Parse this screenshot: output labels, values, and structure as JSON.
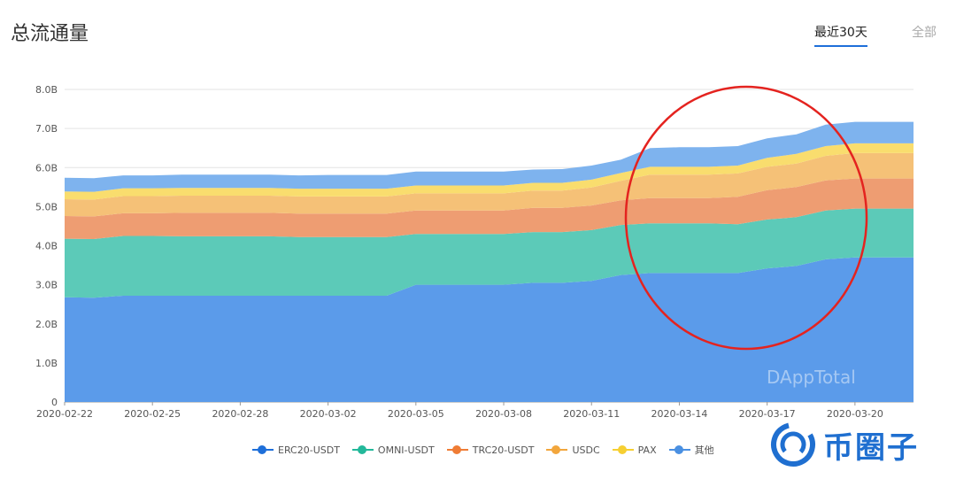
{
  "header": {
    "title": "总流通量",
    "tabs": [
      {
        "label": "最近30天",
        "active": true
      },
      {
        "label": "全部",
        "active": false
      }
    ]
  },
  "watermark": "DAppTotal",
  "brand": {
    "text": "币圈子",
    "color": "#1f6fd0"
  },
  "annotation": {
    "shape": "red-circle",
    "color": "#e4231f"
  },
  "chart_data": {
    "type": "area",
    "stacked": true,
    "x": [
      "2020-02-22",
      "2020-02-23",
      "2020-02-24",
      "2020-02-25",
      "2020-02-26",
      "2020-02-27",
      "2020-02-28",
      "2020-02-29",
      "2020-03-01",
      "2020-03-02",
      "2020-03-03",
      "2020-03-04",
      "2020-03-05",
      "2020-03-06",
      "2020-03-07",
      "2020-03-08",
      "2020-03-09",
      "2020-03-10",
      "2020-03-11",
      "2020-03-12",
      "2020-03-13",
      "2020-03-14",
      "2020-03-15",
      "2020-03-16",
      "2020-03-17",
      "2020-03-18",
      "2020-03-19",
      "2020-03-20",
      "2020-03-21",
      "2020-03-22"
    ],
    "x_tick_labels": [
      "2020-02-22",
      "2020-02-25",
      "2020-02-28",
      "2020-03-02",
      "2020-03-05",
      "2020-03-08",
      "2020-03-11",
      "2020-03-14",
      "2020-03-17",
      "2020-03-20"
    ],
    "y_tick_labels": [
      "0",
      "1.0B",
      "2.0B",
      "3.0B",
      "4.0B",
      "5.0B",
      "6.0B",
      "7.0B",
      "8.0B"
    ],
    "ylim": [
      0,
      8
    ],
    "unit": "B",
    "grid": true,
    "legend_position": "bottom",
    "series": [
      {
        "name": "ERC20-USDT",
        "color": "#5b9bea",
        "legend_color": "#1e6fd9",
        "values": [
          2.68,
          2.67,
          2.72,
          2.72,
          2.72,
          2.72,
          2.72,
          2.72,
          2.72,
          2.72,
          2.72,
          2.72,
          3.0,
          3.0,
          3.0,
          3.0,
          3.05,
          3.05,
          3.1,
          3.25,
          3.3,
          3.3,
          3.3,
          3.3,
          3.42,
          3.48,
          3.65,
          3.7,
          3.7,
          3.7
        ]
      },
      {
        "name": "OMNI-USDT",
        "color": "#5ccab8",
        "legend_color": "#23b89a",
        "values": [
          1.5,
          1.5,
          1.53,
          1.53,
          1.52,
          1.52,
          1.52,
          1.52,
          1.5,
          1.5,
          1.5,
          1.5,
          1.3,
          1.3,
          1.3,
          1.3,
          1.3,
          1.3,
          1.3,
          1.28,
          1.27,
          1.27,
          1.27,
          1.25,
          1.25,
          1.25,
          1.25,
          1.25,
          1.25,
          1.25
        ]
      },
      {
        "name": "TRC20-USDT",
        "color": "#ee9d72",
        "legend_color": "#ef7c35",
        "values": [
          0.58,
          0.58,
          0.58,
          0.58,
          0.6,
          0.6,
          0.6,
          0.6,
          0.6,
          0.6,
          0.6,
          0.6,
          0.6,
          0.6,
          0.6,
          0.6,
          0.62,
          0.62,
          0.63,
          0.63,
          0.65,
          0.65,
          0.65,
          0.7,
          0.75,
          0.77,
          0.77,
          0.77,
          0.77,
          0.77
        ]
      },
      {
        "name": "USDC",
        "color": "#f5c177",
        "legend_color": "#f2a63c",
        "values": [
          0.43,
          0.43,
          0.44,
          0.44,
          0.44,
          0.44,
          0.44,
          0.44,
          0.44,
          0.44,
          0.44,
          0.44,
          0.44,
          0.44,
          0.44,
          0.44,
          0.44,
          0.44,
          0.46,
          0.5,
          0.6,
          0.6,
          0.6,
          0.6,
          0.6,
          0.6,
          0.63,
          0.65,
          0.65,
          0.65
        ]
      },
      {
        "name": "PAX",
        "color": "#f9dd6e",
        "legend_color": "#f6cf32",
        "values": [
          0.2,
          0.2,
          0.2,
          0.2,
          0.2,
          0.2,
          0.2,
          0.2,
          0.2,
          0.2,
          0.2,
          0.2,
          0.2,
          0.2,
          0.2,
          0.2,
          0.2,
          0.2,
          0.2,
          0.2,
          0.2,
          0.2,
          0.2,
          0.2,
          0.23,
          0.25,
          0.25,
          0.25,
          0.25,
          0.25
        ]
      },
      {
        "name": "其他",
        "color": "#7eb3ee",
        "legend_color": "#4a90e2",
        "values": [
          0.35,
          0.35,
          0.33,
          0.33,
          0.34,
          0.34,
          0.34,
          0.34,
          0.34,
          0.35,
          0.35,
          0.35,
          0.36,
          0.36,
          0.36,
          0.36,
          0.34,
          0.35,
          0.36,
          0.34,
          0.48,
          0.5,
          0.5,
          0.5,
          0.5,
          0.5,
          0.55,
          0.55,
          0.55,
          0.55
        ]
      }
    ]
  }
}
